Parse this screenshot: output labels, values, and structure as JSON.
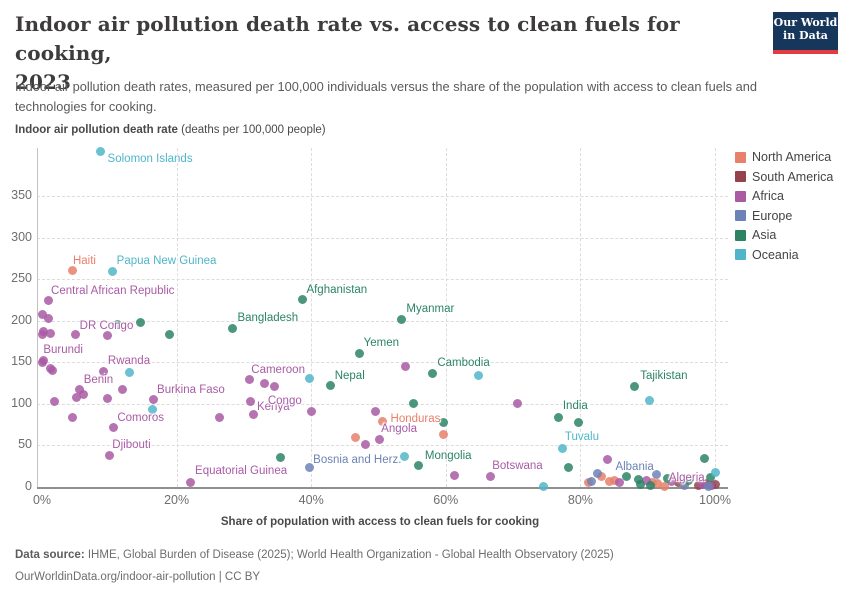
{
  "header": {
    "title_line1": "Indoor air pollution death rate vs. access to clean fuels for cooking,",
    "title_line2": "2023",
    "logo_line1": "Our World",
    "logo_line2": "in Data"
  },
  "subtitle": "Indoor air pollution death rates, measured per 100,000 individuals versus the share of the population with access to clean fuels and technologies for cooking.",
  "axis": {
    "y_title_bold": "Indoor air pollution death rate",
    "y_title_note": " (deaths per 100,000 people)",
    "x_title": "Share of population with access to clean fuels for cooking",
    "y_ticks": [
      0,
      50,
      100,
      150,
      200,
      250,
      300,
      350
    ],
    "x_ticks": [
      {
        "v": 0,
        "label": "0%"
      },
      {
        "v": 20,
        "label": "20%"
      },
      {
        "v": 40,
        "label": "40%"
      },
      {
        "v": 60,
        "label": "60%"
      },
      {
        "v": 80,
        "label": "80%"
      },
      {
        "v": 100,
        "label": "100%"
      }
    ]
  },
  "footer": {
    "source_label": "Data source:",
    "source_text": " IHME, Global Burden of Disease (2025); World Health Organization - Global Health Observatory (2025)",
    "link": "OurWorldinData.org/indoor-air-pollution",
    "separator": " | ",
    "license": "CC BY"
  },
  "chart_data": {
    "type": "scatter",
    "title": "Indoor air pollution death rate vs. access to clean fuels for cooking, 2023",
    "xlabel": "Share of population with access to clean fuels for cooking",
    "ylabel": "Indoor air pollution death rate (deaths per 100,000 people)",
    "xlim": [
      0,
      100
    ],
    "ylim": [
      0,
      410
    ],
    "x_unit": "%",
    "grid": "dashed",
    "legend_position": "right",
    "series": [
      {
        "name": "North America",
        "color": "#E8806B",
        "points": [
          {
            "x": 4.6,
            "y": 261,
            "l": "Haiti",
            "dx": 0,
            "dy": -15
          },
          {
            "x": 46.6,
            "y": 60
          },
          {
            "x": 50.6,
            "y": 79,
            "l": "Honduras",
            "dx": 8,
            "dy": -8
          },
          {
            "x": 59.6,
            "y": 63
          },
          {
            "x": 81.2,
            "y": 5
          },
          {
            "x": 83.2,
            "y": 13
          },
          {
            "x": 84.3,
            "y": 7
          },
          {
            "x": 85.0,
            "y": 8
          },
          {
            "x": 90.7,
            "y": 5
          },
          {
            "x": 91.5,
            "y": 4
          },
          {
            "x": 92.5,
            "y": 1
          },
          {
            "x": 95.3,
            "y": 4
          }
        ]
      },
      {
        "name": "South America",
        "color": "#94434C",
        "points": [
          {
            "x": 94.6,
            "y": 6
          },
          {
            "x": 97.6,
            "y": 2
          },
          {
            "x": 98.6,
            "y": 4
          },
          {
            "x": 99.5,
            "y": 2
          },
          {
            "x": 100,
            "y": 3
          }
        ]
      },
      {
        "name": "Africa",
        "color": "#A95BA5",
        "points": [
          {
            "x": 0.9,
            "y": 224,
            "l": "Central African Republic",
            "dx": 3,
            "dy": -16
          },
          {
            "x": 0,
            "y": 208
          },
          {
            "x": 0.9,
            "y": 203
          },
          {
            "x": 0.2,
            "y": 187
          },
          {
            "x": 1.3,
            "y": 185
          },
          {
            "x": 0,
            "y": 183
          },
          {
            "x": 5.0,
            "y": 184,
            "l": "DR Congo",
            "dx": 4,
            "dy": -14
          },
          {
            "x": 9.8,
            "y": 182
          },
          {
            "x": 0.2,
            "y": 152,
            "l": "Burundi",
            "dx": 0,
            "dy": -17
          },
          {
            "x": 0,
            "y": 150
          },
          {
            "x": 1.2,
            "y": 143
          },
          {
            "x": 1.6,
            "y": 140
          },
          {
            "x": 9.2,
            "y": 139,
            "l": "Rwanda",
            "dx": 4,
            "dy": -16
          },
          {
            "x": 5.6,
            "y": 117,
            "l": "Benin",
            "dx": 4,
            "dy": -16
          },
          {
            "x": 12.0,
            "y": 117
          },
          {
            "x": 6.1,
            "y": 111
          },
          {
            "x": 5.2,
            "y": 108
          },
          {
            "x": 9.8,
            "y": 107
          },
          {
            "x": 1.9,
            "y": 103
          },
          {
            "x": 16.5,
            "y": 105,
            "l": "Burkina Faso",
            "dx": 4,
            "dy": -16
          },
          {
            "x": 4.6,
            "y": 83
          },
          {
            "x": 10.6,
            "y": 71,
            "l": "Comoros",
            "dx": 4,
            "dy": -16
          },
          {
            "x": 10.0,
            "y": 38,
            "l": "Djibouti",
            "dx": 3,
            "dy": -16
          },
          {
            "x": 22.0,
            "y": 5,
            "l": "Equatorial Guinea",
            "dx": 5,
            "dy": -18
          },
          {
            "x": 26.4,
            "y": 83
          },
          {
            "x": 30.8,
            "y": 129,
            "l": "Cameroon",
            "dx": 2,
            "dy": -16
          },
          {
            "x": 31.0,
            "y": 103
          },
          {
            "x": 33.0,
            "y": 124
          },
          {
            "x": 34.5,
            "y": 121
          },
          {
            "x": 31.5,
            "y": 87,
            "l": "Kenya",
            "dx": 3,
            "dy": -14
          },
          {
            "x": 40.1,
            "y": 91,
            "l": "Congo",
            "dx": -44,
            "dy": -16
          },
          {
            "x": 49.5,
            "y": 91
          },
          {
            "x": 54.0,
            "y": 145
          },
          {
            "x": 48.1,
            "y": 51
          },
          {
            "x": 50.1,
            "y": 57,
            "l": "Angola",
            "dx": 2,
            "dy": -17
          },
          {
            "x": 61.3,
            "y": 14
          },
          {
            "x": 66.6,
            "y": 13,
            "l": "Botswana",
            "dx": 2,
            "dy": -16
          },
          {
            "x": 70.6,
            "y": 101
          },
          {
            "x": 84.0,
            "y": 33
          },
          {
            "x": 85.8,
            "y": 5
          },
          {
            "x": 89.8,
            "y": 8
          },
          {
            "x": 93.6,
            "y": 7
          },
          {
            "x": 98.2,
            "y": 3,
            "l": "Algeria",
            "dx": -34,
            "dy": -13
          },
          {
            "x": 99.3,
            "y": 2
          }
        ]
      },
      {
        "name": "Europe",
        "color": "#6D83B5",
        "points": [
          {
            "x": 39.7,
            "y": 23,
            "l": "Bosnia and Herz.",
            "dx": 4,
            "dy": -14
          },
          {
            "x": 81.7,
            "y": 7
          },
          {
            "x": 82.6,
            "y": 16
          },
          {
            "x": 91.3,
            "y": 15,
            "l": "Albania",
            "dx": -41,
            "dy": -14
          },
          {
            "x": 95.5,
            "y": 2
          },
          {
            "x": 99.0,
            "y": 1
          }
        ]
      },
      {
        "name": "Asia",
        "color": "#2C8465",
        "points": [
          {
            "x": 11.2,
            "y": 195
          },
          {
            "x": 14.6,
            "y": 198
          },
          {
            "x": 19.0,
            "y": 183
          },
          {
            "x": 28.3,
            "y": 191,
            "l": "Bangladesh",
            "dx": 5,
            "dy": -16
          },
          {
            "x": 38.7,
            "y": 225,
            "l": "Afghanistan",
            "dx": 4,
            "dy": -16
          },
          {
            "x": 47.2,
            "y": 161,
            "l": "Yemen",
            "dx": 4,
            "dy": -16
          },
          {
            "x": 53.4,
            "y": 202,
            "l": "Myanmar",
            "dx": 5,
            "dy": -16
          },
          {
            "x": 42.9,
            "y": 122,
            "l": "Nepal",
            "dx": 4,
            "dy": -16
          },
          {
            "x": 58.0,
            "y": 137,
            "l": "Cambodia",
            "dx": 5,
            "dy": -16
          },
          {
            "x": 55.2,
            "y": 101
          },
          {
            "x": 35.5,
            "y": 35
          },
          {
            "x": 56.0,
            "y": 26,
            "l": "Mongolia",
            "dx": 6,
            "dy": -15
          },
          {
            "x": 59.6,
            "y": 77
          },
          {
            "x": 76.8,
            "y": 84,
            "l": "India",
            "dx": 4,
            "dy": -17
          },
          {
            "x": 79.7,
            "y": 77
          },
          {
            "x": 78.3,
            "y": 24
          },
          {
            "x": 86.9,
            "y": 13
          },
          {
            "x": 88.0,
            "y": 121,
            "l": "Tajikistan",
            "dx": 6,
            "dy": -16
          },
          {
            "x": 88.6,
            "y": 9
          },
          {
            "x": 89.0,
            "y": 3
          },
          {
            "x": 90.4,
            "y": 2
          },
          {
            "x": 92.9,
            "y": 10
          },
          {
            "x": 96.0,
            "y": 8
          },
          {
            "x": 98.5,
            "y": 34
          },
          {
            "x": 99.4,
            "y": 11
          }
        ]
      },
      {
        "name": "Oceania",
        "color": "#4FB6C9",
        "points": [
          {
            "x": 8.7,
            "y": 404,
            "l": "Solomon Islands",
            "dx": 7,
            "dy": 2
          },
          {
            "x": 10.5,
            "y": 259,
            "l": "Papua New Guinea",
            "dx": 4,
            "dy": -17
          },
          {
            "x": 13.0,
            "y": 138
          },
          {
            "x": 16.4,
            "y": 93
          },
          {
            "x": 39.8,
            "y": 131
          },
          {
            "x": 53.9,
            "y": 37
          },
          {
            "x": 64.9,
            "y": 134
          },
          {
            "x": 74.5,
            "y": 1
          },
          {
            "x": 77.4,
            "y": 46,
            "l": "Tuvalu",
            "dx": 2,
            "dy": -18
          },
          {
            "x": 90.2,
            "y": 104
          },
          {
            "x": 100,
            "y": 18
          }
        ]
      }
    ]
  }
}
